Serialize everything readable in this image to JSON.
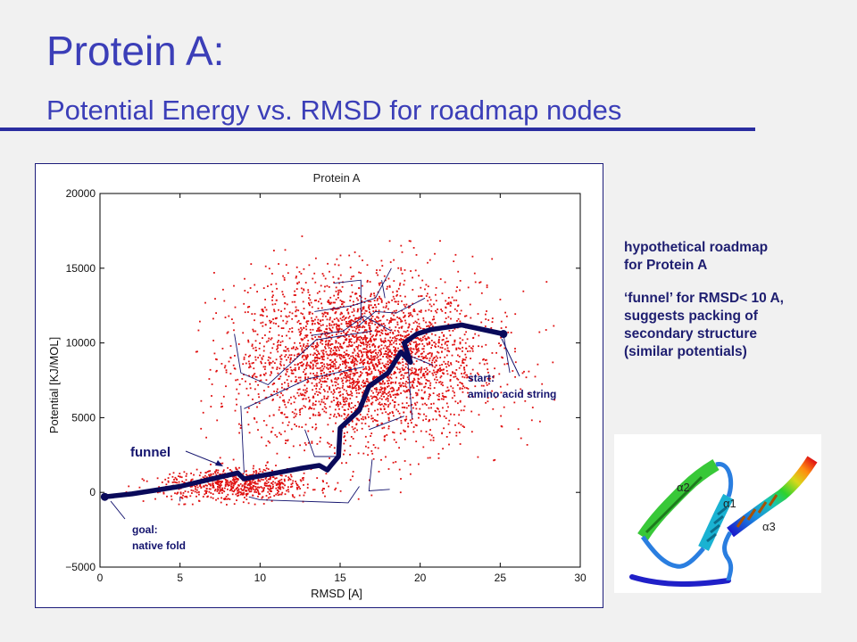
{
  "slide": {
    "title": "Protein A:",
    "subtitle": "Potential Energy vs. RMSD for roadmap nodes"
  },
  "notes": {
    "line1": "hypothetical roadmap\nfor Protein A",
    "line2": "‘funnel’ for RMSD< 10 A,\nsuggests packing of\nsecondary structure\n(similar potentials)"
  },
  "annotations": {
    "funnel": "funnel",
    "start": "start:\namino acid string",
    "goal": "goal:\nnative fold"
  },
  "structure_labels": [
    "α2",
    "α1",
    "α3"
  ],
  "colors": {
    "title": "#3b3eb8",
    "notes": "#1e1e70",
    "points": "#e01010",
    "path": "#0a0a5a",
    "roadmap_edges": "#14146e"
  },
  "chart_data": {
    "type": "scatter",
    "title": "Protein A",
    "xlabel": "RMSD [A]",
    "ylabel": "Potential [KJ/MOL]",
    "xlim": [
      0,
      30
    ],
    "ylim": [
      -5000,
      20000
    ],
    "xticks": [
      0,
      5,
      10,
      15,
      20,
      25,
      30
    ],
    "yticks": [
      -5000,
      0,
      5000,
      10000,
      15000,
      20000
    ],
    "grid": false,
    "scatter_clusters": [
      {
        "x_mean": 16.5,
        "x_sd": 3.6,
        "y_mean": 8800,
        "y_sd": 2600,
        "count": 2600
      },
      {
        "x_mean": 8.5,
        "x_sd": 2.4,
        "y_mean": 500,
        "y_sd": 550,
        "count": 700
      },
      {
        "x_mean": 16,
        "x_sd": 4.8,
        "y_mean": 9500,
        "y_sd": 3300,
        "count": 700
      }
    ],
    "funnel_path": [
      [
        0.3,
        -300
      ],
      [
        2,
        -100
      ],
      [
        5,
        400
      ],
      [
        7,
        900
      ],
      [
        8.6,
        1300
      ],
      [
        9,
        900
      ],
      [
        11,
        1300
      ],
      [
        12.5,
        1600
      ],
      [
        13.7,
        1800
      ],
      [
        14.2,
        1500
      ],
      [
        14.5,
        1900
      ],
      [
        14.9,
        2400
      ],
      [
        15,
        4300
      ],
      [
        16.2,
        5500
      ],
      [
        16.8,
        7100
      ],
      [
        18,
        8000
      ],
      [
        18.8,
        9400
      ],
      [
        19.4,
        8700
      ],
      [
        19,
        10000
      ],
      [
        19.8,
        10600
      ],
      [
        20.7,
        10900
      ],
      [
        22.6,
        11200
      ],
      [
        25.2,
        10600
      ]
    ],
    "start_point": [
      25.2,
      10600
    ],
    "goal_point": [
      0.3,
      -300
    ]
  }
}
